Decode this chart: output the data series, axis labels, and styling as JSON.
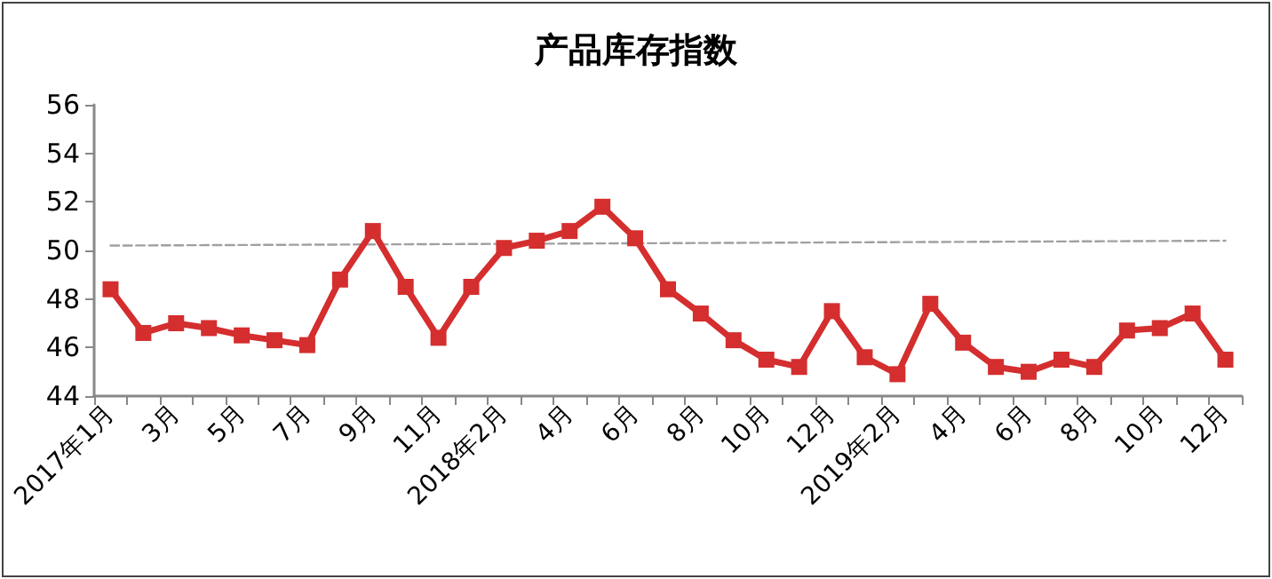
{
  "chart_data": {
    "type": "line",
    "title": "产品库存指数",
    "categories": [
      "2017年1月",
      null,
      "3月",
      null,
      "5月",
      null,
      "7月",
      null,
      "9月",
      null,
      "11月",
      null,
      "2018年2月",
      null,
      "4月",
      null,
      "6月",
      null,
      "8月",
      null,
      "10月",
      null,
      "12月",
      null,
      "2019年2月",
      null,
      "4月",
      null,
      "6月",
      null,
      "8月",
      null,
      "10月",
      null,
      "12月"
    ],
    "series": [
      {
        "color": "#d42e2e",
        "marker": "square",
        "values": [
          48.4,
          46.6,
          47.0,
          46.8,
          46.5,
          46.3,
          46.1,
          48.8,
          50.8,
          48.5,
          46.4,
          48.5,
          50.1,
          50.4,
          50.8,
          51.8,
          50.5,
          48.4,
          47.4,
          46.3,
          45.5,
          45.2,
          47.5,
          45.6,
          44.9,
          47.8,
          46.2,
          45.2,
          45.0,
          45.5,
          45.2,
          46.7,
          46.8,
          47.4,
          45.5
        ]
      },
      {
        "color": "#a0a0a0",
        "marker": "none",
        "line_style": "dashed",
        "values": [
          50.2,
          null,
          null,
          null,
          null,
          null,
          null,
          null,
          null,
          null,
          null,
          null,
          null,
          null,
          null,
          null,
          null,
          null,
          null,
          null,
          null,
          null,
          null,
          null,
          null,
          null,
          null,
          null,
          null,
          null,
          null,
          null,
          null,
          null,
          50.4
        ]
      }
    ],
    "ylim": [
      44,
      56
    ],
    "yticks": [
      44,
      46,
      48,
      50,
      52,
      54,
      56
    ],
    "grid": false
  }
}
